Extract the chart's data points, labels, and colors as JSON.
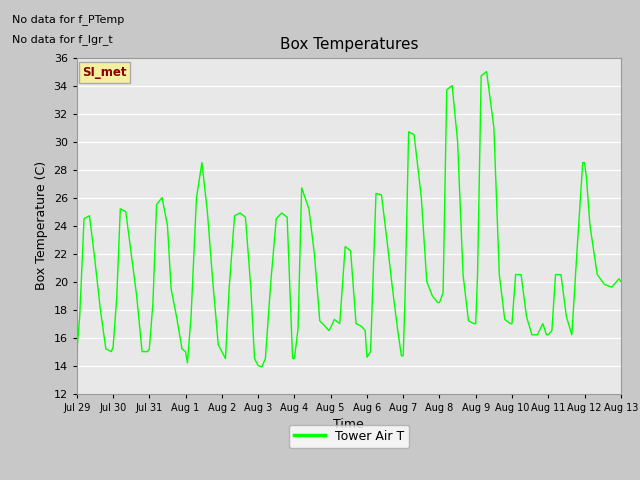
{
  "title": "Box Temperatures",
  "xlabel": "Time",
  "ylabel": "Box Temperature (C)",
  "no_data_text1": "No data for f_PTemp",
  "no_data_text2": "No data for f_lgr_t",
  "si_met_label": "SI_met",
  "legend_label": "Tower Air T",
  "line_color": "#00FF00",
  "fig_bg": "#C8C8C8",
  "plot_bg": "#E8E8E8",
  "ylim": [
    12,
    36
  ],
  "yticks": [
    12,
    14,
    16,
    18,
    20,
    22,
    24,
    26,
    28,
    30,
    32,
    34,
    36
  ],
  "xtick_labels": [
    "Jul 29",
    "Jul 30",
    "Jul 31",
    "Aug 1",
    "Aug 2",
    "Aug 3",
    "Aug 4",
    "Aug 5",
    "Aug 6",
    "Aug 7",
    "Aug 8",
    "Aug 9",
    "Aug 10",
    "Aug 11",
    "Aug 12",
    "Aug 13"
  ],
  "t": [
    0.0,
    0.08,
    0.2,
    0.35,
    0.5,
    0.65,
    0.8,
    0.95,
    1.0,
    1.1,
    1.2,
    1.35,
    1.5,
    1.65,
    1.8,
    1.95,
    2.0,
    2.1,
    2.2,
    2.35,
    2.5,
    2.6,
    2.75,
    2.9,
    3.0,
    3.05,
    3.15,
    3.3,
    3.45,
    3.6,
    3.75,
    3.9,
    4.0,
    4.1,
    4.2,
    4.35,
    4.5,
    4.65,
    4.8,
    4.9,
    5.0,
    5.1,
    5.2,
    5.35,
    5.5,
    5.65,
    5.8,
    5.95,
    6.0,
    6.1,
    6.2,
    6.4,
    6.55,
    6.7,
    6.85,
    6.95,
    7.0,
    7.1,
    7.25,
    7.4,
    7.55,
    7.7,
    7.85,
    7.95,
    8.0,
    8.1,
    8.25,
    8.4,
    8.55,
    8.7,
    8.85,
    8.95,
    9.0,
    9.05,
    9.15,
    9.3,
    9.5,
    9.65,
    9.8,
    9.95,
    10.0,
    10.1,
    10.2,
    10.35,
    10.5,
    10.65,
    10.8,
    10.95,
    11.0,
    11.05,
    11.15,
    11.3,
    11.5,
    11.65,
    11.8,
    11.95,
    12.0,
    12.1,
    12.25,
    12.4,
    12.55,
    12.7,
    12.85,
    12.95,
    13.0,
    13.1,
    13.2,
    13.35,
    13.5,
    13.65,
    13.8,
    13.95,
    14.0,
    14.05,
    14.15,
    14.35,
    14.55,
    14.75,
    14.95,
    15.0
  ],
  "temp": [
    15.0,
    17.5,
    24.5,
    24.7,
    21.5,
    18.0,
    15.2,
    15.0,
    15.3,
    18.8,
    25.2,
    25.0,
    22.0,
    19.0,
    15.0,
    15.0,
    15.2,
    18.5,
    25.5,
    26.0,
    24.0,
    19.5,
    17.5,
    15.2,
    15.0,
    14.2,
    17.5,
    26.0,
    28.5,
    25.0,
    20.0,
    15.5,
    15.0,
    14.5,
    19.5,
    24.7,
    24.9,
    24.6,
    19.5,
    14.5,
    14.0,
    13.9,
    14.5,
    20.0,
    24.5,
    24.9,
    24.6,
    14.5,
    14.5,
    16.6,
    26.7,
    25.2,
    22.0,
    17.2,
    16.8,
    16.5,
    16.7,
    17.3,
    17.0,
    22.5,
    22.2,
    17.0,
    16.8,
    16.5,
    14.6,
    15.0,
    26.3,
    26.2,
    23.0,
    19.6,
    16.5,
    14.7,
    14.7,
    18.8,
    30.7,
    30.5,
    26.0,
    20.0,
    19.0,
    18.5,
    18.5,
    19.2,
    33.7,
    34.0,
    30.0,
    20.5,
    17.2,
    17.0,
    17.0,
    20.5,
    34.7,
    35.0,
    31.0,
    20.5,
    17.3,
    17.0,
    17.0,
    20.5,
    20.5,
    17.5,
    16.2,
    16.2,
    17.0,
    16.2,
    16.2,
    16.5,
    20.5,
    20.5,
    17.5,
    16.2,
    22.5,
    28.5,
    28.5,
    27.5,
    24.0,
    20.5,
    19.8,
    19.6,
    20.2,
    20.0
  ],
  "xlim": [
    0,
    15.0
  ]
}
